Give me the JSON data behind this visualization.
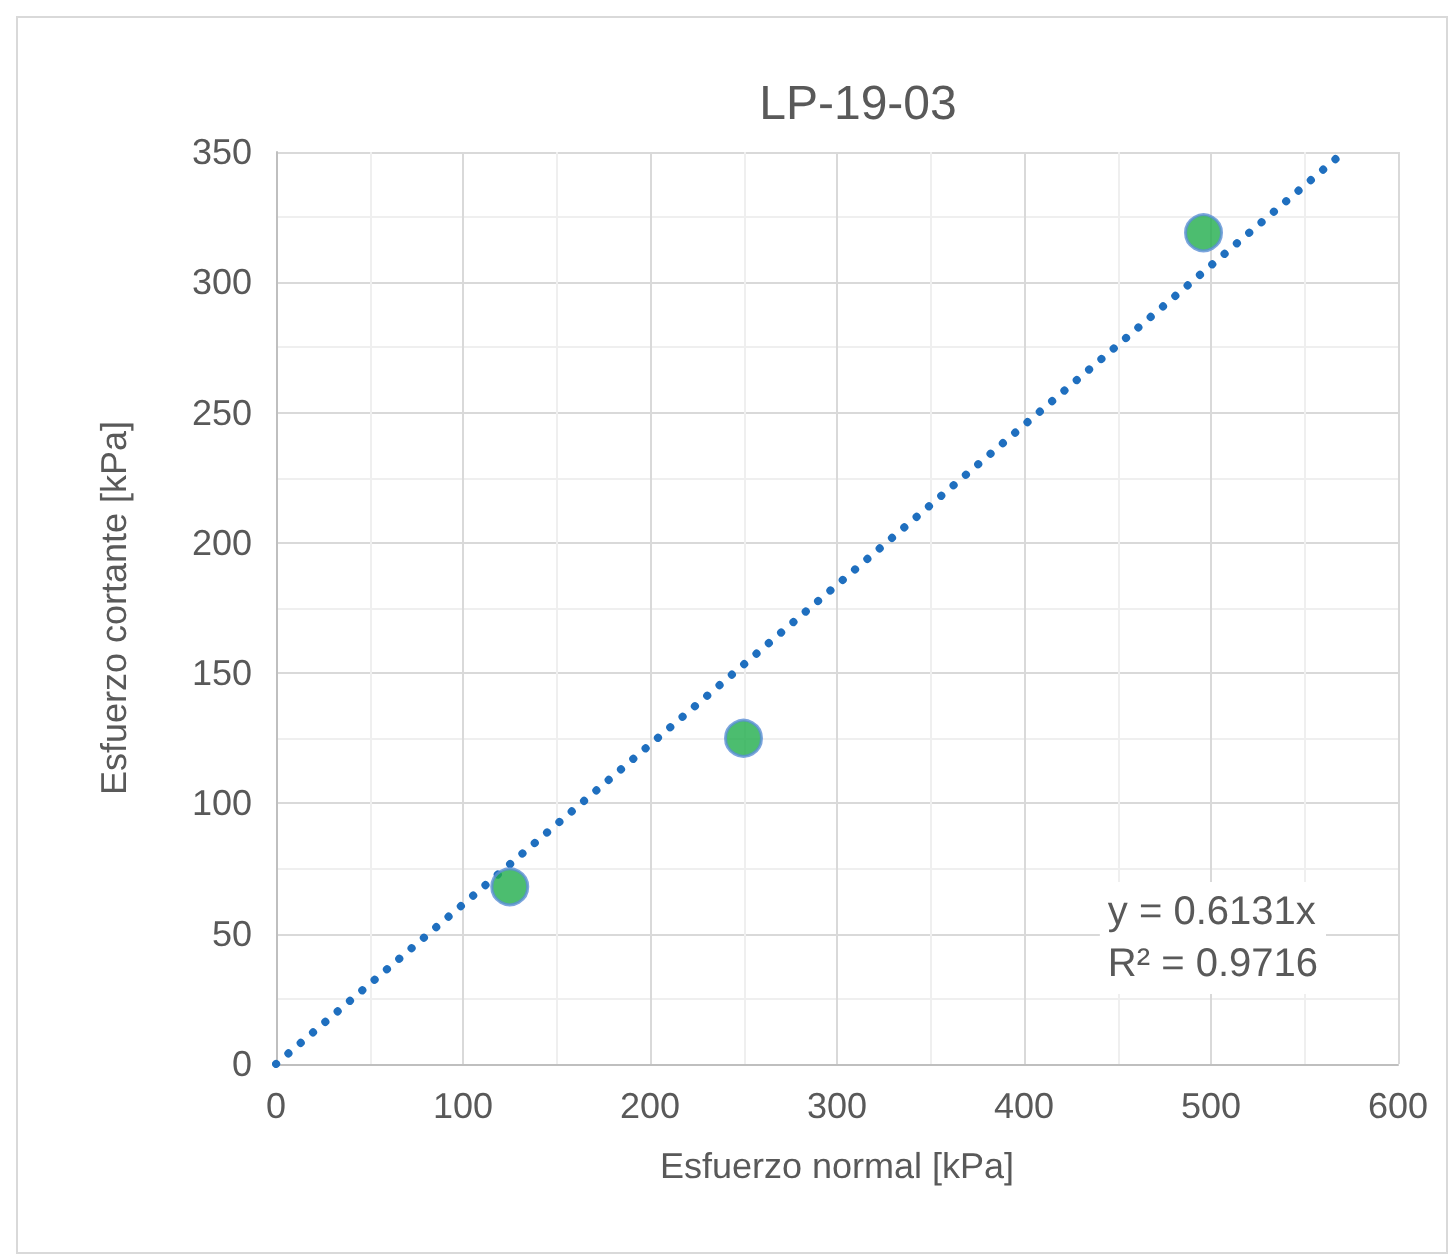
{
  "chart_data": {
    "type": "scatter",
    "title": "LP-19-03",
    "xlabel": "Esfuerzo normal [kPa]",
    "ylabel": "Esfuerzo cortante [kPa]",
    "series": [
      {
        "color": "#1fad4b",
        "x": [
          125,
          250,
          496
        ],
        "values": [
          68,
          125,
          319
        ],
        "marker": "circle"
      },
      {
        "type": "line",
        "color": "#1f6fbf",
        "x": [
          0,
          571
        ],
        "values": [
          0,
          350
        ],
        "line_style": "dotted",
        "marker": "none"
      }
    ],
    "annotations": [
      "y = 0.6131x\nR² = 0.9716"
    ],
    "xlim": [
      0,
      600
    ],
    "xticks": [
      0,
      100,
      200,
      300,
      400,
      500,
      600
    ],
    "ylim": [
      0,
      350
    ],
    "yticks": [
      0,
      50,
      100,
      150,
      200,
      250,
      300,
      350
    ],
    "grid": true
  }
}
